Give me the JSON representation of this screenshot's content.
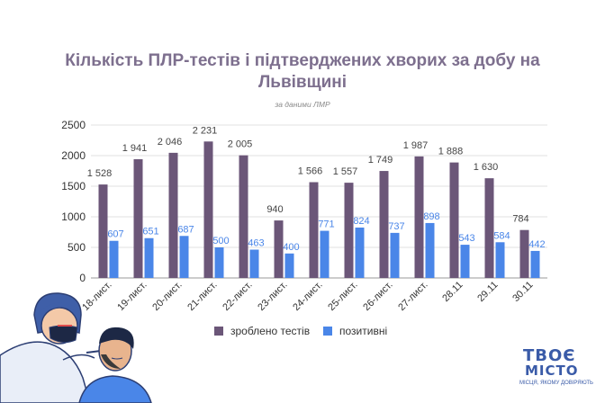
{
  "chart_data": {
    "type": "bar",
    "title": "Кількість ПЛР-тестів і підтверджених хворих за добу на Львівщині",
    "subtitle": "за даними ЛМР",
    "categories": [
      "18-лист.",
      "19-лист.",
      "20-лист.",
      "21-лист.",
      "22-лист.",
      "23-лист.",
      "24-лист.",
      "25-лист.",
      "26-лист.",
      "27-лист.",
      "28.11",
      "29.11",
      "30.11"
    ],
    "series": [
      {
        "name": "зроблено тестів",
        "color": "#6b5678",
        "values": [
          1528,
          1941,
          2046,
          2231,
          2005,
          940,
          1566,
          1557,
          1749,
          1987,
          1888,
          1630,
          784
        ],
        "labels": [
          "1 528",
          "1 941",
          "2 046",
          "2 231",
          "2 005",
          "940",
          "1 566",
          "1 557",
          "1 749",
          "1 987",
          "1 888",
          "1 630",
          "784"
        ]
      },
      {
        "name": "позитивні",
        "color": "#4a86e8",
        "values": [
          607,
          651,
          687,
          500,
          463,
          400,
          771,
          824,
          737,
          898,
          543,
          584,
          442
        ],
        "labels": [
          "607",
          "651",
          "687",
          "500",
          "463",
          "400",
          "771",
          "824",
          "737",
          "898",
          "543",
          "584",
          "442"
        ]
      }
    ],
    "ylim": [
      0,
      2500
    ],
    "yticks": [
      0,
      500,
      1000,
      1500,
      2000,
      2500
    ],
    "grid": true,
    "legend": "bottom"
  },
  "logo": {
    "line1": "ТВОЄ",
    "line2": "МІСТО",
    "line3": "МІСЦЯ, ЯКОМУ ДОВІРЯЮТЬ"
  }
}
